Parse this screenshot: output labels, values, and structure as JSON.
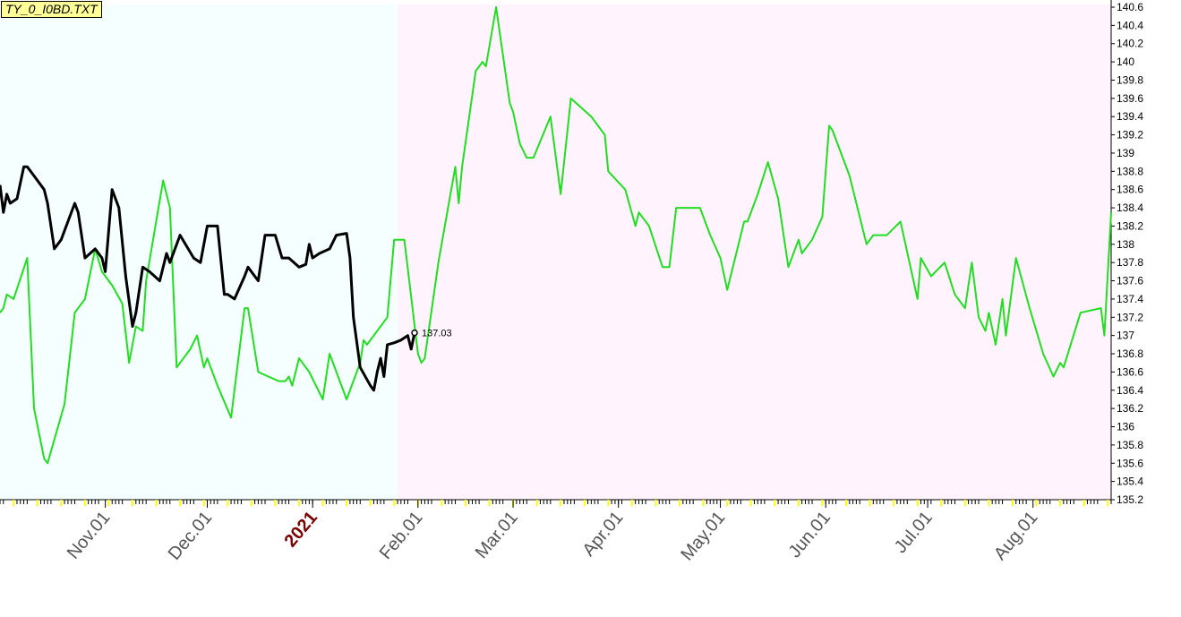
{
  "window": {
    "title": "TY_0_I0BD.TXT"
  },
  "colors": {
    "history_bg": "#f5ffff",
    "forecast_bg": "#fff3fd",
    "forecast_line": "#22dd22",
    "price_line": "#000000",
    "year_label": "#7a0000",
    "tick_major": "#ffff00"
  },
  "chart_data": {
    "type": "line",
    "title": "TY_0_I0BD.TXT",
    "xlabel": "",
    "ylabel": "",
    "x_range": [
      "2020-10-01",
      "2021-08-24"
    ],
    "forecast_start": "2021-01-26",
    "ylim": [
      135.2,
      140.6
    ],
    "yticks": [
      140.6,
      140.4,
      140.2,
      140,
      139.8,
      139.6,
      139.4,
      139.2,
      139,
      138.8,
      138.6,
      138.4,
      138.2,
      138,
      137.8,
      137.6,
      137.4,
      137.2,
      137,
      136.8,
      136.6,
      136.4,
      136.2,
      136,
      135.8,
      135.6,
      135.4,
      135.2
    ],
    "xtick_labels": [
      {
        "label": "Nov.01",
        "date": "2020-11-01",
        "year": false
      },
      {
        "label": "Dec.01",
        "date": "2020-12-01",
        "year": false
      },
      {
        "label": "2021",
        "date": "2021-01-01",
        "year": true
      },
      {
        "label": "Feb.01",
        "date": "2021-02-01",
        "year": false
      },
      {
        "label": "Mar.01",
        "date": "2021-03-01",
        "year": false
      },
      {
        "label": "Apr.01",
        "date": "2021-04-01",
        "year": false
      },
      {
        "label": "May.01",
        "date": "2021-05-01",
        "year": false
      },
      {
        "label": "Jun.01",
        "date": "2021-06-01",
        "year": false
      },
      {
        "label": "Jul.01",
        "date": "2021-07-01",
        "year": false
      },
      {
        "label": "Aug.01",
        "date": "2021-08-01",
        "year": false
      }
    ],
    "last_value_label": "137.03",
    "series": [
      {
        "style": "price",
        "points": [
          [
            "2020-10-01",
            138.65
          ],
          [
            "2020-10-02",
            138.35
          ],
          [
            "2020-10-03",
            138.55
          ],
          [
            "2020-10-04",
            138.45
          ],
          [
            "2020-10-06",
            138.5
          ],
          [
            "2020-10-08",
            138.85
          ],
          [
            "2020-10-09",
            138.85
          ],
          [
            "2020-10-11",
            138.75
          ],
          [
            "2020-10-14",
            138.6
          ],
          [
            "2020-10-15",
            138.45
          ],
          [
            "2020-10-17",
            137.95
          ],
          [
            "2020-10-19",
            138.05
          ],
          [
            "2020-10-23",
            138.45
          ],
          [
            "2020-10-24",
            138.35
          ],
          [
            "2020-10-26",
            137.85
          ],
          [
            "2020-10-29",
            137.95
          ],
          [
            "2020-10-31",
            137.85
          ],
          [
            "2020-11-01",
            137.7
          ],
          [
            "2020-11-03",
            138.6
          ],
          [
            "2020-11-05",
            138.4
          ],
          [
            "2020-11-07",
            137.65
          ],
          [
            "2020-11-09",
            137.1
          ],
          [
            "2020-11-10",
            137.25
          ],
          [
            "2020-11-12",
            137.75
          ],
          [
            "2020-11-14",
            137.7
          ],
          [
            "2020-11-17",
            137.6
          ],
          [
            "2020-11-19",
            137.9
          ],
          [
            "2020-11-20",
            137.8
          ],
          [
            "2020-11-23",
            138.1
          ],
          [
            "2020-11-27",
            137.85
          ],
          [
            "2020-11-29",
            137.8
          ],
          [
            "2020-12-01",
            138.2
          ],
          [
            "2020-12-04",
            138.2
          ],
          [
            "2020-12-06",
            137.45
          ],
          [
            "2020-12-07",
            137.45
          ],
          [
            "2020-12-09",
            137.4
          ],
          [
            "2020-12-12",
            137.65
          ],
          [
            "2020-12-13",
            137.75
          ],
          [
            "2020-12-16",
            137.6
          ],
          [
            "2020-12-18",
            138.1
          ],
          [
            "2020-12-21",
            138.1
          ],
          [
            "2020-12-23",
            137.85
          ],
          [
            "2020-12-25",
            137.85
          ],
          [
            "2020-12-28",
            137.75
          ],
          [
            "2020-12-30",
            137.78
          ],
          [
            "2020-12-31",
            138.0
          ],
          [
            "2021-01-01",
            137.85
          ],
          [
            "2021-01-03",
            137.9
          ],
          [
            "2021-01-06",
            137.95
          ],
          [
            "2021-01-08",
            138.1
          ],
          [
            "2021-01-11",
            138.12
          ],
          [
            "2021-01-12",
            137.85
          ],
          [
            "2021-01-13",
            137.2
          ],
          [
            "2021-01-15",
            136.65
          ],
          [
            "2021-01-18",
            136.45
          ],
          [
            "2021-01-19",
            136.4
          ],
          [
            "2021-01-20",
            136.6
          ],
          [
            "2021-01-21",
            136.75
          ],
          [
            "2021-01-22",
            136.55
          ],
          [
            "2021-01-23",
            136.9
          ],
          [
            "2021-01-25",
            136.92
          ],
          [
            "2021-01-27",
            136.95
          ],
          [
            "2021-01-29",
            137.0
          ],
          [
            "2021-01-30",
            136.85
          ],
          [
            "2021-01-31",
            137.03
          ]
        ]
      },
      {
        "style": "forecast",
        "points": [
          [
            "2020-10-01",
            137.25
          ],
          [
            "2020-10-02",
            137.3
          ],
          [
            "2020-10-03",
            137.45
          ],
          [
            "2020-10-05",
            137.4
          ],
          [
            "2020-10-09",
            137.85
          ],
          [
            "2020-10-11",
            136.2
          ],
          [
            "2020-10-14",
            135.65
          ],
          [
            "2020-10-15",
            135.6
          ],
          [
            "2020-10-20",
            136.25
          ],
          [
            "2020-10-23",
            137.25
          ],
          [
            "2020-10-26",
            137.4
          ],
          [
            "2020-10-29",
            137.95
          ],
          [
            "2020-10-31",
            137.7
          ],
          [
            "2020-11-03",
            137.55
          ],
          [
            "2020-11-06",
            137.35
          ],
          [
            "2020-11-08",
            136.7
          ],
          [
            "2020-11-10",
            137.1
          ],
          [
            "2020-11-12",
            137.05
          ],
          [
            "2020-11-13",
            137.6
          ],
          [
            "2020-11-18",
            138.7
          ],
          [
            "2020-11-20",
            138.4
          ],
          [
            "2020-11-22",
            136.65
          ],
          [
            "2020-11-26",
            136.85
          ],
          [
            "2020-11-28",
            137.0
          ],
          [
            "2020-11-30",
            136.65
          ],
          [
            "2020-12-01",
            136.75
          ],
          [
            "2020-12-04",
            136.45
          ],
          [
            "2020-12-08",
            136.1
          ],
          [
            "2020-12-12",
            137.3
          ],
          [
            "2020-12-13",
            137.3
          ],
          [
            "2020-12-16",
            136.6
          ],
          [
            "2020-12-19",
            136.55
          ],
          [
            "2020-12-22",
            136.5
          ],
          [
            "2020-12-24",
            136.5
          ],
          [
            "2020-12-25",
            136.55
          ],
          [
            "2020-12-26",
            136.45
          ],
          [
            "2020-12-28",
            136.75
          ],
          [
            "2020-12-31",
            136.6
          ],
          [
            "2021-01-02",
            136.45
          ],
          [
            "2021-01-04",
            136.3
          ],
          [
            "2021-01-06",
            136.8
          ],
          [
            "2021-01-09",
            136.5
          ],
          [
            "2021-01-11",
            136.3
          ],
          [
            "2021-01-15",
            136.7
          ],
          [
            "2021-01-16",
            136.95
          ],
          [
            "2021-01-17",
            136.9
          ],
          [
            "2021-01-23",
            137.2
          ],
          [
            "2021-01-25",
            138.05
          ],
          [
            "2021-01-28",
            138.05
          ],
          [
            "2021-02-01",
            136.8
          ],
          [
            "2021-02-02",
            136.7
          ],
          [
            "2021-02-03",
            136.75
          ],
          [
            "2021-02-07",
            137.8
          ],
          [
            "2021-02-12",
            138.85
          ],
          [
            "2021-02-13",
            138.45
          ],
          [
            "2021-02-14",
            138.85
          ],
          [
            "2021-02-18",
            139.9
          ],
          [
            "2021-02-20",
            140.0
          ],
          [
            "2021-02-21",
            139.95
          ],
          [
            "2021-02-24",
            140.6
          ],
          [
            "2021-02-28",
            139.55
          ],
          [
            "2021-03-01",
            139.45
          ],
          [
            "2021-03-03",
            139.1
          ],
          [
            "2021-03-05",
            138.95
          ],
          [
            "2021-03-07",
            138.95
          ],
          [
            "2021-03-12",
            139.4
          ],
          [
            "2021-03-15",
            138.55
          ],
          [
            "2021-03-18",
            139.6
          ],
          [
            "2021-03-24",
            139.4
          ],
          [
            "2021-03-28",
            139.2
          ],
          [
            "2021-03-29",
            138.8
          ],
          [
            "2021-04-03",
            138.6
          ],
          [
            "2021-04-06",
            138.2
          ],
          [
            "2021-04-07",
            138.35
          ],
          [
            "2021-04-10",
            138.2
          ],
          [
            "2021-04-14",
            137.75
          ],
          [
            "2021-04-16",
            137.75
          ],
          [
            "2021-04-18",
            138.4
          ],
          [
            "2021-04-20",
            138.4
          ],
          [
            "2021-04-25",
            138.4
          ],
          [
            "2021-04-28",
            138.1
          ],
          [
            "2021-05-01",
            137.85
          ],
          [
            "2021-05-03",
            137.5
          ],
          [
            "2021-05-08",
            138.25
          ],
          [
            "2021-05-09",
            138.25
          ],
          [
            "2021-05-12",
            138.55
          ],
          [
            "2021-05-15",
            138.9
          ],
          [
            "2021-05-18",
            138.5
          ],
          [
            "2021-05-21",
            137.75
          ],
          [
            "2021-05-24",
            138.05
          ],
          [
            "2021-05-25",
            137.9
          ],
          [
            "2021-05-28",
            138.05
          ],
          [
            "2021-05-31",
            138.3
          ],
          [
            "2021-06-02",
            139.3
          ],
          [
            "2021-06-03",
            139.25
          ],
          [
            "2021-06-08",
            138.75
          ],
          [
            "2021-06-13",
            138.0
          ],
          [
            "2021-06-15",
            138.1
          ],
          [
            "2021-06-19",
            138.1
          ],
          [
            "2021-06-23",
            138.25
          ],
          [
            "2021-06-28",
            137.4
          ],
          [
            "2021-06-29",
            137.85
          ],
          [
            "2021-07-02",
            137.65
          ],
          [
            "2021-07-06",
            137.8
          ],
          [
            "2021-07-09",
            137.45
          ],
          [
            "2021-07-12",
            137.3
          ],
          [
            "2021-07-14",
            137.8
          ],
          [
            "2021-07-16",
            137.2
          ],
          [
            "2021-07-18",
            137.05
          ],
          [
            "2021-07-19",
            137.25
          ],
          [
            "2021-07-21",
            136.9
          ],
          [
            "2021-07-23",
            137.4
          ],
          [
            "2021-07-24",
            137.0
          ],
          [
            "2021-07-27",
            137.85
          ],
          [
            "2021-07-31",
            137.3
          ],
          [
            "2021-08-04",
            136.8
          ],
          [
            "2021-08-07",
            136.55
          ],
          [
            "2021-08-09",
            136.7
          ],
          [
            "2021-08-10",
            136.65
          ],
          [
            "2021-08-15",
            137.25
          ],
          [
            "2021-08-21",
            137.3
          ],
          [
            "2021-08-22",
            137.0
          ],
          [
            "2021-08-24",
            138.35
          ]
        ]
      }
    ]
  }
}
